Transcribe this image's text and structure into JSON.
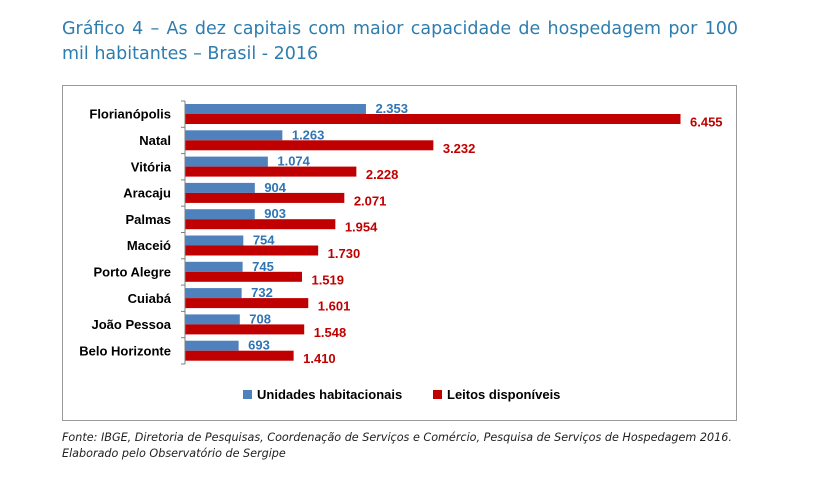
{
  "title": "Gráfico 4 – As dez capitais com maior capacidade de hospedagem por 100 mil habitantes – Brasil - 2016",
  "source": "Fonte: IBGE, Diretoria de Pesquisas, Coordenação de Serviços e Comércio, Pesquisa de Serviços de Hospedagem 2016. Elaborado pelo Observatório de Sergipe",
  "colors": {
    "title": "#2E7DAF",
    "series1": "#4F81BD",
    "series2": "#C00000",
    "label1": "#2E75B6",
    "label2": "#C00000"
  },
  "chart_data": {
    "type": "bar",
    "orientation": "horizontal",
    "categories": [
      "Florianópolis",
      "Natal",
      "Vitória",
      "Aracaju",
      "Palmas",
      "Maceió",
      "Porto Alegre",
      "Cuiabá",
      "João Pessoa",
      "Belo Horizonte"
    ],
    "series": [
      {
        "name": "Unidades habitacionais",
        "values": [
          2353,
          1263,
          1074,
          904,
          903,
          754,
          745,
          732,
          708,
          693
        ],
        "labels": [
          "2.353",
          "1.263",
          "1.074",
          "904",
          "903",
          "754",
          "745",
          "732",
          "708",
          "693"
        ]
      },
      {
        "name": "Leitos disponíveis",
        "values": [
          6455,
          3232,
          2228,
          2071,
          1954,
          1730,
          1519,
          1601,
          1548,
          1410
        ],
        "labels": [
          "6.455",
          "3.232",
          "2.228",
          "2.071",
          "1.954",
          "1.730",
          "1.519",
          "1.601",
          "1.548",
          "1.410"
        ]
      }
    ],
    "xlim": [
      0,
      7000
    ],
    "grid": false,
    "legend": "bottom"
  }
}
